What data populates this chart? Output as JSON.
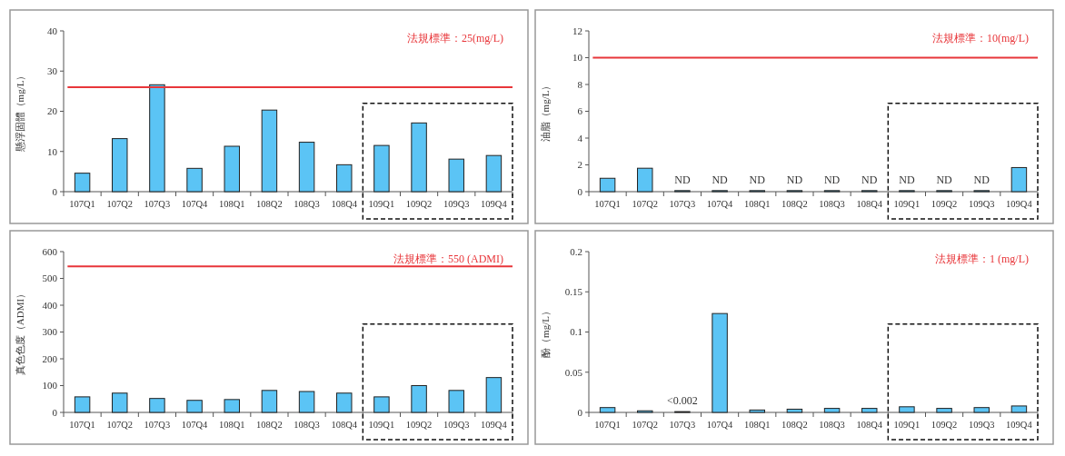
{
  "chart_data": [
    {
      "type": "bar",
      "ylabel": "懸浮固體（mg/L）",
      "categories": [
        "107Q1",
        "107Q2",
        "107Q3",
        "107Q4",
        "108Q1",
        "108Q2",
        "108Q3",
        "108Q4",
        "109Q1",
        "109Q2",
        "109Q3",
        "109Q4"
      ],
      "values": [
        4.6,
        13.2,
        26.6,
        5.8,
        11.3,
        20.3,
        12.3,
        6.7,
        11.5,
        17.1,
        8.1,
        9.0
      ],
      "color": "#5bc4f5",
      "ylim": [
        0,
        40
      ],
      "yticks": [
        0,
        10,
        20,
        30,
        40
      ],
      "ref_lines": [
        {
          "axis": "y",
          "value": 26,
          "color": "#e8363a"
        }
      ],
      "annotations": [
        "法規標準：25(mg/L)"
      ]
    },
    {
      "type": "bar",
      "ylabel": "油脂（mg/L）",
      "categories": [
        "107Q1",
        "107Q2",
        "107Q3",
        "107Q4",
        "108Q1",
        "108Q2",
        "108Q3",
        "108Q4",
        "109Q1",
        "109Q2",
        "109Q3",
        "109Q4"
      ],
      "values": [
        1.0,
        1.75,
        0.08,
        0.08,
        0.08,
        0.08,
        0.08,
        0.08,
        0.08,
        0.08,
        0.08,
        1.8
      ],
      "value_labels": [
        null,
        null,
        "ND",
        "ND",
        "ND",
        "ND",
        "ND",
        "ND",
        "ND",
        "ND",
        "ND",
        null
      ],
      "color": "#5bc4f5",
      "ylim": [
        0,
        12
      ],
      "yticks": [
        0,
        2,
        4,
        6,
        8,
        10,
        12
      ],
      "ref_lines": [
        {
          "axis": "y",
          "value": 10,
          "color": "#e8363a"
        }
      ],
      "annotations": [
        "法規標準：10(mg/L)"
      ]
    },
    {
      "type": "bar",
      "ylabel": "真色色度（ADMI）",
      "categories": [
        "107Q1",
        "107Q2",
        "107Q3",
        "107Q4",
        "108Q1",
        "108Q2",
        "108Q3",
        "108Q4",
        "109Q1",
        "109Q2",
        "109Q3",
        "109Q4"
      ],
      "values": [
        58,
        72,
        52,
        45,
        48,
        82,
        78,
        72,
        58,
        100,
        82,
        130
      ],
      "color": "#5bc4f5",
      "ylim": [
        0,
        600
      ],
      "yticks": [
        0,
        100,
        200,
        300,
        400,
        500,
        600
      ],
      "ref_lines": [
        {
          "axis": "y",
          "value": 545,
          "color": "#e8363a"
        }
      ],
      "annotations": [
        "法規標準：550 (ADMI)"
      ]
    },
    {
      "type": "bar",
      "ylabel": "酚（mg/L）",
      "categories": [
        "107Q1",
        "107Q2",
        "107Q3",
        "107Q4",
        "108Q1",
        "108Q2",
        "108Q3",
        "108Q4",
        "109Q1",
        "109Q2",
        "109Q3",
        "109Q4"
      ],
      "values": [
        0.006,
        0.002,
        0.001,
        0.123,
        0.003,
        0.004,
        0.005,
        0.005,
        0.007,
        0.005,
        0.006,
        0.008
      ],
      "value_labels": [
        null,
        null,
        "<0.002",
        null,
        null,
        null,
        null,
        null,
        null,
        null,
        null,
        null
      ],
      "color": "#5bc4f5",
      "ylim": [
        0,
        0.2
      ],
      "yticks": [
        0,
        0.05,
        0.1,
        0.15,
        0.2
      ],
      "annotations": [
        "法規標準：1 (mg/L)"
      ]
    }
  ]
}
